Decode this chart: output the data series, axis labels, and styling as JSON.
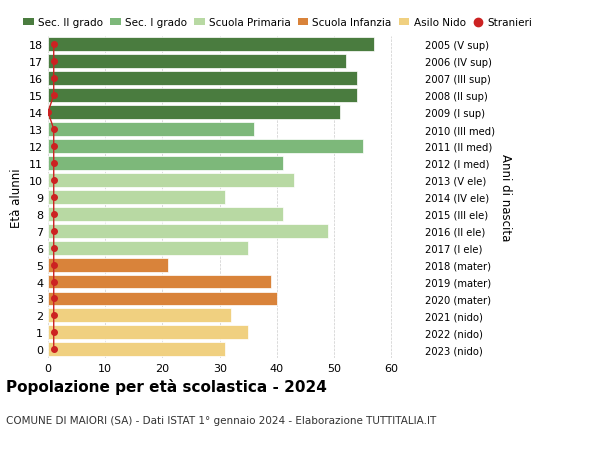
{
  "ages": [
    18,
    17,
    16,
    15,
    14,
    13,
    12,
    11,
    10,
    9,
    8,
    7,
    6,
    5,
    4,
    3,
    2,
    1,
    0
  ],
  "values": [
    57,
    52,
    54,
    54,
    51,
    36,
    55,
    41,
    43,
    31,
    41,
    49,
    35,
    21,
    39,
    40,
    32,
    35,
    31
  ],
  "stranieri": [
    1,
    1,
    1,
    1,
    0,
    1,
    1,
    1,
    1,
    1,
    1,
    1,
    1,
    1,
    1,
    1,
    1,
    1,
    1
  ],
  "right_labels": [
    "2005 (V sup)",
    "2006 (IV sup)",
    "2007 (III sup)",
    "2008 (II sup)",
    "2009 (I sup)",
    "2010 (III med)",
    "2011 (II med)",
    "2012 (I med)",
    "2013 (V ele)",
    "2014 (IV ele)",
    "2015 (III ele)",
    "2016 (II ele)",
    "2017 (I ele)",
    "2018 (mater)",
    "2019 (mater)",
    "2020 (mater)",
    "2021 (nido)",
    "2022 (nido)",
    "2023 (nido)"
  ],
  "bar_colors": [
    "#4a7c3f",
    "#4a7c3f",
    "#4a7c3f",
    "#4a7c3f",
    "#4a7c3f",
    "#7db87a",
    "#7db87a",
    "#7db87a",
    "#b8d9a3",
    "#b8d9a3",
    "#b8d9a3",
    "#b8d9a3",
    "#b8d9a3",
    "#d9833a",
    "#d9833a",
    "#d9833a",
    "#f0d080",
    "#f0d080",
    "#f0d080"
  ],
  "stranieri_color": "#cc2222",
  "legend_labels": [
    "Sec. II grado",
    "Sec. I grado",
    "Scuola Primaria",
    "Scuola Infanzia",
    "Asilo Nido",
    "Stranieri"
  ],
  "legend_colors": [
    "#4a7c3f",
    "#7db87a",
    "#b8d9a3",
    "#d9833a",
    "#f0d080",
    "#cc2222"
  ],
  "title": "Popolazione per età scolastica - 2024",
  "subtitle": "COMUNE DI MAIORI (SA) - Dati ISTAT 1° gennaio 2024 - Elaborazione TUTTITALIA.IT",
  "ylabel_left": "Età alunni",
  "ylabel_right": "Anni di nascita",
  "xlim": [
    0,
    65
  ],
  "xticks": [
    0,
    10,
    20,
    30,
    40,
    50,
    60
  ],
  "bg_color": "#ffffff",
  "grid_color": "#cccccc"
}
